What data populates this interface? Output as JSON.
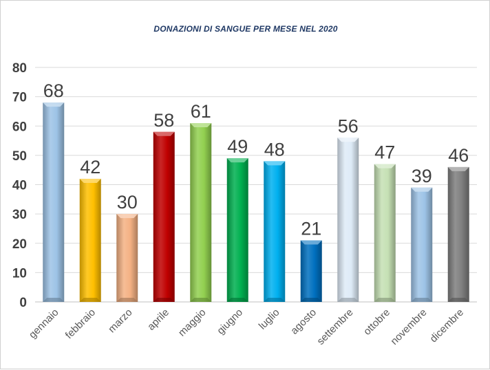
{
  "chart_data": {
    "type": "bar",
    "title": "DONAZIONI DI SANGUE PER MESE NEL 2020",
    "xlabel": "",
    "ylabel": "",
    "categories": [
      "gennaio",
      "febbraio",
      "marzo",
      "aprile",
      "maggio",
      "giugno",
      "luglio",
      "agosto",
      "settembre",
      "ottobre",
      "novembre",
      "dicembre"
    ],
    "values": [
      68,
      42,
      30,
      58,
      61,
      49,
      48,
      21,
      56,
      47,
      39,
      46
    ],
    "colors": [
      "#9dc3e6",
      "#ffc000",
      "#f4b183",
      "#c00000",
      "#92d050",
      "#00b050",
      "#00b0f0",
      "#0070c0",
      "#deebf7",
      "#c5e0b4",
      "#9dc3e6",
      "#7f7f7f"
    ],
    "ylim": [
      0,
      80
    ],
    "yticks": [
      0,
      10,
      20,
      30,
      40,
      50,
      60,
      70,
      80
    ],
    "grid": true,
    "legend": "none",
    "data_labels": true
  }
}
